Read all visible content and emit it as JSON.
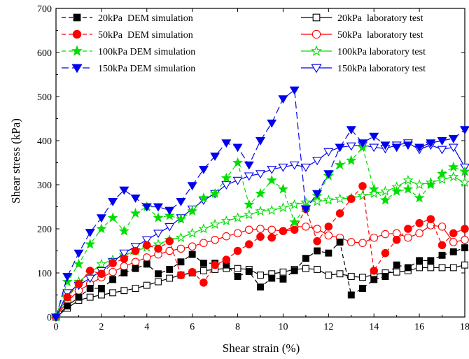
{
  "chart_data": {
    "type": "line",
    "xlabel": "Shear strain (%)",
    "ylabel": "Shear stress (kPa)",
    "xlim": [
      0,
      18
    ],
    "ylim": [
      0,
      700
    ],
    "xticks": [
      0,
      2,
      4,
      6,
      8,
      10,
      12,
      14,
      16,
      18
    ],
    "yticks": [
      0,
      100,
      200,
      300,
      400,
      500,
      600,
      700
    ],
    "legend_placement": "top",
    "series": [
      {
        "name": "20kPa  DEM simulation",
        "color": "#000000",
        "marker": "square",
        "filled": true,
        "dash": "dash",
        "x": [
          0,
          0.5,
          1,
          1.5,
          2,
          2.5,
          3,
          3.5,
          4,
          4.5,
          5,
          5.5,
          6,
          6.5,
          7,
          7.5,
          8,
          8.5,
          9,
          9.5,
          10,
          10.5,
          11,
          11.5,
          12,
          12.5,
          13,
          13.5,
          14,
          14.5,
          15,
          15.5,
          16,
          16.5,
          17,
          17.5,
          18
        ],
        "y": [
          0,
          25,
          45,
          65,
          65,
          85,
          100,
          110,
          120,
          98,
          108,
          125,
          142,
          122,
          122,
          118,
          92,
          103,
          68,
          88,
          86,
          105,
          133,
          150,
          145,
          170,
          50,
          65,
          85,
          92,
          118,
          112,
          128,
          128,
          140,
          148,
          157
        ]
      },
      {
        "name": "50kPa  DEM simulation",
        "color": "#ff0000",
        "marker": "circle",
        "filled": true,
        "dash": "dash",
        "x": [
          0,
          0.5,
          1,
          1.5,
          2,
          2.5,
          3,
          3.5,
          4,
          4.5,
          5,
          5.5,
          6,
          6.5,
          7,
          7.5,
          8,
          8.5,
          9,
          9.5,
          10,
          10.5,
          11,
          11.5,
          12,
          12.5,
          13,
          13.5,
          14,
          14.5,
          15,
          15.5,
          16,
          16.5,
          17,
          17.5,
          18
        ],
        "y": [
          0,
          45,
          75,
          105,
          98,
          122,
          132,
          150,
          163,
          155,
          172,
          95,
          102,
          78,
          118,
          130,
          150,
          165,
          182,
          180,
          195,
          198,
          245,
          172,
          205,
          235,
          268,
          297,
          105,
          145,
          175,
          200,
          213,
          222,
          163,
          190,
          200
        ]
      },
      {
        "name": "100kPa DEM simulation",
        "color": "#00dd00",
        "marker": "star",
        "filled": true,
        "dash": "dash",
        "x": [
          0,
          0.5,
          1,
          1.5,
          2,
          2.5,
          3,
          3.5,
          4,
          4.5,
          5,
          5.5,
          6,
          6.5,
          7,
          7.5,
          8,
          8.5,
          9,
          9.5,
          10,
          10.5,
          11,
          11.5,
          12,
          12.5,
          13,
          13.5,
          14,
          14.5,
          15,
          15.5,
          16,
          16.5,
          17,
          17.5,
          18
        ],
        "y": [
          0,
          80,
          120,
          165,
          200,
          225,
          195,
          235,
          250,
          225,
          230,
          222,
          240,
          270,
          280,
          315,
          350,
          255,
          280,
          310,
          290,
          215,
          250,
          275,
          320,
          345,
          355,
          385,
          290,
          265,
          285,
          290,
          270,
          300,
          325,
          340,
          330
        ]
      },
      {
        "name": "150kPa DEM simulation",
        "color": "#0000ee",
        "marker": "triangle-down",
        "filled": true,
        "dash": "longdash",
        "x": [
          0,
          0.5,
          1,
          1.5,
          2,
          2.5,
          3,
          3.5,
          4,
          4.5,
          5,
          5.5,
          6,
          6.5,
          7,
          7.5,
          8,
          8.5,
          9,
          9.5,
          10,
          10.5,
          11,
          11.5,
          12,
          12.5,
          13,
          13.5,
          14,
          14.5,
          15,
          15.5,
          16,
          16.5,
          17,
          17.5,
          18
        ],
        "y": [
          0,
          92,
          145,
          192,
          225,
          262,
          288,
          270,
          250,
          250,
          242,
          262,
          298,
          335,
          365,
          395,
          385,
          345,
          400,
          440,
          495,
          515,
          245,
          280,
          325,
          385,
          425,
          395,
          410,
          390,
          385,
          390,
          385,
          395,
          400,
          405,
          425
        ]
      },
      {
        "name": "20kPa  laboratory test",
        "color": "#000000",
        "marker": "square",
        "filled": false,
        "dash": "solid",
        "x": [
          0,
          0.5,
          1,
          1.5,
          2,
          2.5,
          3,
          3.5,
          4,
          4.5,
          5,
          5.5,
          6,
          6.5,
          7,
          7.5,
          8,
          8.5,
          9,
          9.5,
          10,
          10.5,
          11,
          11.5,
          12,
          12.5,
          13,
          13.5,
          14,
          14.5,
          15,
          15.5,
          16,
          16.5,
          17,
          17.5,
          18
        ],
        "y": [
          0,
          20,
          38,
          45,
          50,
          55,
          60,
          65,
          72,
          80,
          88,
          95,
          100,
          105,
          108,
          110,
          110,
          108,
          95,
          98,
          102,
          108,
          110,
          108,
          95,
          98,
          92,
          90,
          96,
          100,
          102,
          105,
          112,
          112,
          112,
          112,
          118
        ]
      },
      {
        "name": "50kPa  laboratory test",
        "color": "#ff0000",
        "marker": "circle",
        "filled": false,
        "dash": "solid",
        "x": [
          0,
          0.5,
          1,
          1.5,
          2,
          2.5,
          3,
          3.5,
          4,
          4.5,
          5,
          5.5,
          6,
          6.5,
          7,
          7.5,
          8,
          8.5,
          9,
          9.5,
          10,
          10.5,
          11,
          11.5,
          12,
          12.5,
          13,
          13.5,
          14,
          14.5,
          15,
          15.5,
          16,
          16.5,
          17,
          17.5,
          18
        ],
        "y": [
          0,
          35,
          60,
          75,
          90,
          102,
          115,
          125,
          135,
          142,
          150,
          155,
          160,
          168,
          175,
          183,
          190,
          198,
          200,
          198,
          195,
          205,
          205,
          200,
          185,
          180,
          170,
          168,
          180,
          188,
          190,
          180,
          190,
          208,
          205,
          170,
          175
        ]
      },
      {
        "name": "100kPa laboratory test",
        "color": "#00dd00",
        "marker": "star",
        "filled": false,
        "dash": "solid",
        "x": [
          0,
          0.5,
          1,
          1.5,
          2,
          2.5,
          3,
          3.5,
          4,
          4.5,
          5,
          5.5,
          6,
          6.5,
          7,
          7.5,
          8,
          8.5,
          9,
          9.5,
          10,
          10.5,
          11,
          11.5,
          12,
          12.5,
          13,
          13.5,
          14,
          14.5,
          15,
          15.5,
          16,
          16.5,
          17,
          17.5,
          18
        ],
        "y": [
          0,
          45,
          80,
          100,
          120,
          130,
          140,
          150,
          158,
          165,
          175,
          180,
          190,
          200,
          210,
          218,
          225,
          232,
          240,
          242,
          248,
          255,
          260,
          262,
          265,
          268,
          270,
          275,
          280,
          285,
          295,
          310,
          300,
          305,
          312,
          318,
          305
        ]
      },
      {
        "name": "150kPa laboratory test",
        "color": "#0000ee",
        "marker": "triangle-down",
        "filled": false,
        "dash": "solid",
        "x": [
          0,
          0.5,
          1,
          1.5,
          2,
          2.5,
          3,
          3.5,
          4,
          4.5,
          5,
          5.5,
          6,
          6.5,
          7,
          7.5,
          8,
          8.5,
          9,
          9.5,
          10,
          10.5,
          11,
          11.5,
          12,
          12.5,
          13,
          13.5,
          14,
          14.5,
          15,
          15.5,
          16,
          16.5,
          17,
          17.5,
          18
        ],
        "y": [
          0,
          55,
          72,
          88,
          105,
          125,
          145,
          160,
          175,
          190,
          205,
          225,
          245,
          265,
          280,
          300,
          310,
          320,
          325,
          335,
          340,
          345,
          340,
          355,
          375,
          385,
          388,
          390,
          385,
          382,
          390,
          395,
          380,
          390,
          380,
          385,
          340
        ]
      }
    ]
  }
}
